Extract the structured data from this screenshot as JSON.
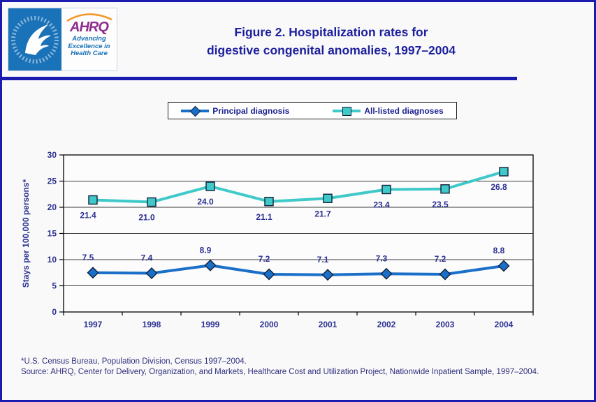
{
  "page": {
    "title_line1": "Figure 2. Hospitalization rates for",
    "title_line2": "digestive congenital anomalies, 1997–2004"
  },
  "colors": {
    "accent_navy": "#1b1bb0",
    "chart_text_navy": "#2b3092",
    "principal_blue": "#1a6fc8",
    "all_listed_teal": "#3fc9c9",
    "hhs_blue": "#1a72b8",
    "ahrq_purple": "#8e2d8e"
  },
  "logo": {
    "seal_text": "DEPARTMENT OF HEALTH & HUMAN SERVICES · USA",
    "ahrq_acronym": "AHRQ",
    "tagline_line1": "Advancing",
    "tagline_line2": "Excellence in",
    "tagline_line3": "Health Care"
  },
  "legend": {
    "items": [
      {
        "label": "Principal diagnosis",
        "marker": "diamond",
        "color": "#1a6fc8"
      },
      {
        "label": "All-listed diagnoses",
        "marker": "square",
        "color": "#3fc9c9"
      }
    ]
  },
  "chart_data": {
    "type": "line",
    "title": "Figure 2. Hospitalization rates for digestive congenital anomalies, 1997–2004",
    "categories": [
      "1997",
      "1998",
      "1999",
      "2000",
      "2001",
      "2002",
      "2003",
      "2004"
    ],
    "series": [
      {
        "name": "All-listed diagnoses",
        "values": [
          21.4,
          21.0,
          24.0,
          21.1,
          21.7,
          23.4,
          23.5,
          26.8
        ],
        "color": "#3fc9c9",
        "marker": "square",
        "label_position": "below"
      },
      {
        "name": "Principal diagnosis",
        "values": [
          7.5,
          7.4,
          8.9,
          7.2,
          7.1,
          7.3,
          7.2,
          8.8
        ],
        "color": "#1a6fc8",
        "marker": "diamond",
        "label_position": "above"
      }
    ],
    "xlabel": "",
    "ylabel": "Stays per 100,000 persons*",
    "ylim": [
      0,
      30
    ],
    "ytick_step": 5,
    "grid": true,
    "legend_position": "top"
  },
  "footnotes": {
    "line1": "*U.S. Census Bureau, Population Division, Census 1997–2004.",
    "line2": "Source: AHRQ, Center for Delivery, Organization, and Markets, Healthcare Cost and Utilization Project, Nationwide Inpatient Sample, 1997–2004."
  }
}
